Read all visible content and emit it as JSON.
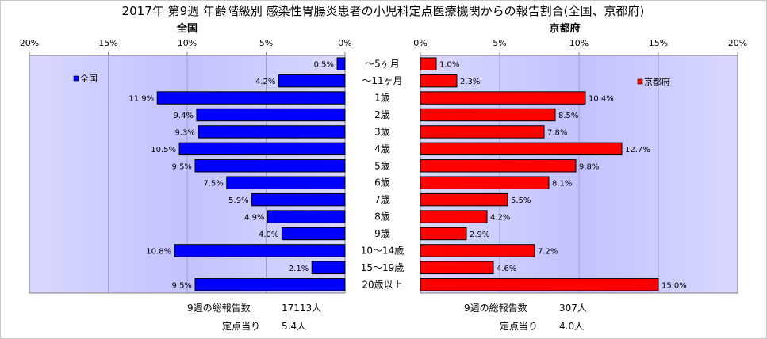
{
  "title": "2017年 第9週 年齢階級別 感染性胃腸炎患者の小児科定点医療機関からの報告割合(全国、京都府)",
  "colors": {
    "left": "#0000ff",
    "right": "#ff0000",
    "plot_bg": "#ccccff",
    "plot_bg_mid": "#b7b7ff"
  },
  "chart_data": [
    {
      "type": "bar",
      "orientation": "horizontal",
      "direction": "right-to-left",
      "title": "全国",
      "categories": [
        "〜5ヶ月",
        "〜11ヶ月",
        "1歳",
        "2歳",
        "3歳",
        "4歳",
        "5歳",
        "6歳",
        "7歳",
        "8歳",
        "9歳",
        "10〜14歳",
        "15〜19歳",
        "20歳以上"
      ],
      "series": [
        {
          "name": "全国",
          "values": [
            0.5,
            4.2,
            11.9,
            9.4,
            9.3,
            10.5,
            9.5,
            7.5,
            5.9,
            4.9,
            4.0,
            10.8,
            2.1,
            9.5
          ]
        }
      ],
      "data_labels": [
        "0.5%",
        "4.2%",
        "11.9%",
        "9.4%",
        "9.3%",
        "10.5%",
        "9.5%",
        "7.5%",
        "5.9%",
        "4.9%",
        "4.0%",
        "10.8%",
        "2.1%",
        "9.5%"
      ],
      "xlim": [
        0,
        20
      ],
      "xticks": [
        20,
        15,
        10,
        5,
        0
      ],
      "xtick_labels": [
        "20%",
        "15%",
        "10%",
        "5%",
        "0%"
      ],
      "legend_position": "top-left",
      "grid": true
    },
    {
      "type": "bar",
      "orientation": "horizontal",
      "direction": "left-to-right",
      "title": "京都府",
      "categories": [
        "〜5ヶ月",
        "〜11ヶ月",
        "1歳",
        "2歳",
        "3歳",
        "4歳",
        "5歳",
        "6歳",
        "7歳",
        "8歳",
        "9歳",
        "10〜14歳",
        "15〜19歳",
        "20歳以上"
      ],
      "series": [
        {
          "name": "京都府",
          "values": [
            1.0,
            2.3,
            10.4,
            8.5,
            7.8,
            12.7,
            9.8,
            8.1,
            5.5,
            4.2,
            2.9,
            7.2,
            4.6,
            15.0
          ]
        }
      ],
      "data_labels": [
        "1.0%",
        "2.3%",
        "10.4%",
        "8.5%",
        "7.8%",
        "12.7%",
        "9.8%",
        "8.1%",
        "5.5%",
        "4.2%",
        "2.9%",
        "7.2%",
        "4.6%",
        "15.0%"
      ],
      "xlim": [
        0,
        20
      ],
      "xticks": [
        0,
        5,
        10,
        15,
        20
      ],
      "xtick_labels": [
        "0%",
        "5%",
        "10%",
        "15%",
        "20%"
      ],
      "legend_position": "top-right",
      "grid": true
    }
  ],
  "footer": {
    "left": {
      "reports_label": "9週の総報告数",
      "reports_value": "17113人",
      "per_site_label": "定点当り",
      "per_site_value": "5.4人"
    },
    "right": {
      "reports_label": "9週の総報告数",
      "reports_value": "307人",
      "per_site_label": "定点当り",
      "per_site_value": "4.0人"
    }
  }
}
